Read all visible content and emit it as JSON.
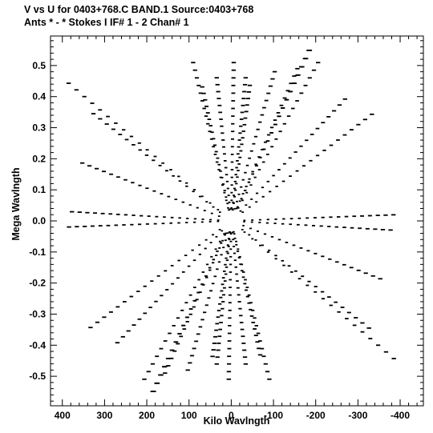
{
  "chart_data": {
    "type": "scatter",
    "title": "V vs U for 0403+768.C BAND.1   Source:0403+768",
    "subtitle": "Ants * - *     Stokes I  IF# 1 - 2  Chan# 1",
    "xlabel": "Kilo Wavlngth",
    "ylabel": "Mega Wavlngth",
    "x_units": "kilo-wavelength",
    "y_units": "mega-wavelength",
    "x_direction": "reversed",
    "xlim": [
      428,
      -455
    ],
    "ylim": [
      -0.595,
      0.595
    ],
    "x_ticks": [
      400,
      300,
      200,
      100,
      0,
      -100,
      -200,
      -300,
      -400
    ],
    "x_tick_labels": [
      "400",
      "300",
      "200",
      "100",
      "0",
      "-100",
      "-200",
      "-300",
      "-400"
    ],
    "y_ticks": [
      0.5,
      0.4,
      0.3,
      0.2,
      0.1,
      0.0,
      -0.1,
      -0.2,
      -0.3,
      -0.4,
      -0.5
    ],
    "y_tick_labels": [
      "0.5",
      "0.4",
      "0.3",
      "0.2",
      "0.1",
      "0.0",
      "-0.1",
      "-0.2",
      "-0.3",
      "-0.4",
      "-0.5"
    ],
    "grid": false,
    "legend": "none",
    "marker_color": "#000000",
    "coverage": {
      "pattern": "radial uv-track spokes, point-symmetric about origin",
      "radial_fraction_start": 0.08,
      "radial_fraction_end": 0.98,
      "samples_per_spoke": 20,
      "spokes": [
        {
          "u": 393,
          "v": 0.452
        },
        {
          "u": 333,
          "v": 0.352
        },
        {
          "u": 360,
          "v": 0.19
        },
        {
          "u": 385,
          "v": 0.03
        },
        {
          "u": 392,
          "v": -0.02
        },
        {
          "u": 340,
          "v": -0.35
        },
        {
          "u": 187,
          "v": -0.56
        },
        {
          "u": 160,
          "v": -0.5
        },
        {
          "u": 105,
          "v": -0.49
        },
        {
          "u": 6,
          "v": -0.52
        },
        {
          "u": -35,
          "v": -0.47
        },
        {
          "u": -92,
          "v": -0.52
        },
        {
          "u": -35,
          "v": 0.47
        },
        {
          "u": 70,
          "v": 0.44
        },
        {
          "u": -45,
          "v": 0.445
        },
        {
          "u": -190,
          "v": 0.56
        },
        {
          "u": -210,
          "v": 0.52
        },
        {
          "u": -275,
          "v": 0.4
        }
      ]
    }
  }
}
